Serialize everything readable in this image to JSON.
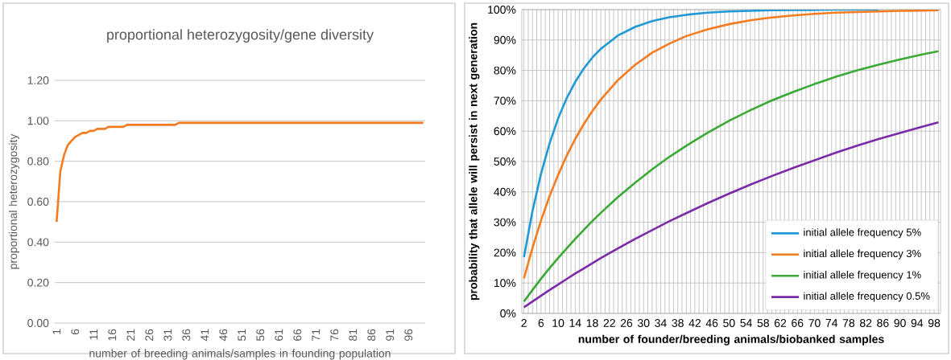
{
  "chart_data": [
    {
      "type": "line",
      "title": "proportional heterozygosity/gene diversity",
      "xlabel": "number of breeding animals/samples in founding population",
      "ylabel": "proportional heterozygosity",
      "categories": [
        "1",
        null,
        null,
        null,
        null,
        "6",
        null,
        null,
        null,
        null,
        "11",
        null,
        null,
        null,
        null,
        "16",
        null,
        null,
        null,
        null,
        "21",
        null,
        null,
        null,
        null,
        "26",
        null,
        null,
        null,
        null,
        "31",
        null,
        null,
        null,
        null,
        "36",
        null,
        null,
        null,
        null,
        "41",
        null,
        null,
        null,
        null,
        "46",
        null,
        null,
        null,
        null,
        "51",
        null,
        null,
        null,
        null,
        "56",
        null,
        null,
        null,
        null,
        "61",
        null,
        null,
        null,
        null,
        "66",
        null,
        null,
        null,
        null,
        "71",
        null,
        null,
        null,
        null,
        "76",
        null,
        null,
        null,
        null,
        "81",
        null,
        null,
        null,
        null,
        "86",
        null,
        null,
        null,
        null,
        "91",
        null,
        null,
        null,
        null,
        "96",
        null,
        null,
        null,
        null
      ],
      "values": [
        0.5,
        0.75,
        0.83,
        0.88,
        0.9,
        0.92,
        0.93,
        0.94,
        0.94,
        0.95,
        0.95,
        0.96,
        0.96,
        0.96,
        0.97,
        0.97,
        0.97,
        0.97,
        0.97,
        0.98,
        0.98,
        0.98,
        0.98,
        0.98,
        0.98,
        0.98,
        0.98,
        0.98,
        0.98,
        0.98,
        0.98,
        0.98,
        0.98,
        0.99,
        0.99,
        0.99,
        0.99,
        0.99,
        0.99,
        0.99,
        0.99,
        0.99,
        0.99,
        0.99,
        0.99,
        0.99,
        0.99,
        0.99,
        0.99,
        0.99,
        0.99,
        0.99,
        0.99,
        0.99,
        0.99,
        0.99,
        0.99,
        0.99,
        0.99,
        0.99,
        0.99,
        0.99,
        0.99,
        0.99,
        0.99,
        0.99,
        0.99,
        0.99,
        0.99,
        0.99,
        0.99,
        0.99,
        0.99,
        0.99,
        0.99,
        0.99,
        0.99,
        0.99,
        0.99,
        0.99,
        0.99,
        0.99,
        0.99,
        0.99,
        0.99,
        0.99,
        0.99,
        0.99,
        0.99,
        0.99,
        0.99,
        0.99,
        0.99,
        0.99,
        0.99,
        0.99,
        0.99,
        0.99,
        0.99,
        0.99
      ],
      "color": "#f47b20",
      "ylim": [
        0,
        1.2
      ],
      "yticks": [
        {
          "value": 0,
          "label": "0.00"
        },
        {
          "value": 0.2,
          "label": "0.20"
        },
        {
          "value": 0.4,
          "label": "0.40"
        },
        {
          "value": 0.6,
          "label": "0.60"
        },
        {
          "value": 0.8,
          "label": "0.80"
        },
        {
          "value": 1.0,
          "label": "1.00"
        },
        {
          "value": 1.2,
          "label": "1.20"
        }
      ],
      "grid": "y"
    },
    {
      "type": "line",
      "xlabel": "number of founder/breeding animals/biobanked samples",
      "ylabel": "probability that allele will persist in next generation",
      "x": [
        2,
        4,
        6,
        8,
        10,
        12,
        14,
        16,
        18,
        20,
        24,
        28,
        32,
        36,
        40,
        45,
        50,
        55,
        60,
        65,
        70,
        75,
        80,
        85,
        90,
        95,
        99
      ],
      "series": [
        {
          "name": "initial allele frequency 5%",
          "color": "#1f9ad6",
          "values": [
            18.5,
            33.7,
            46.0,
            56.0,
            64.2,
            70.8,
            76.2,
            80.6,
            84.2,
            87.1,
            91.5,
            94.3,
            96.2,
            97.5,
            98.3,
            99.0,
            99.4,
            99.6,
            99.8,
            99.9,
            99.9,
            100.0,
            100.0,
            100.0,
            null,
            null,
            null
          ]
        },
        {
          "name": "initial allele frequency 3%",
          "color": "#f47b20",
          "values": [
            11.5,
            21.6,
            30.6,
            38.6,
            45.6,
            51.9,
            57.4,
            62.3,
            66.6,
            70.4,
            76.8,
            81.8,
            85.8,
            88.8,
            91.3,
            93.5,
            95.2,
            96.5,
            97.4,
            98.1,
            98.6,
            99.0,
            99.2,
            99.4,
            99.6,
            99.7,
            99.8
          ]
        },
        {
          "name": "initial allele frequency 1%",
          "color": "#3aa935",
          "values": [
            3.9,
            7.7,
            11.4,
            14.9,
            18.2,
            21.4,
            24.5,
            27.5,
            30.4,
            33.1,
            38.3,
            43.0,
            47.4,
            51.5,
            55.2,
            59.5,
            63.4,
            66.9,
            70.1,
            72.9,
            75.5,
            77.9,
            80.0,
            81.9,
            83.6,
            85.2,
            86.3
          ]
        },
        {
          "name": "initial allele frequency 0.5%",
          "color": "#7b2aa8",
          "values": [
            2.0,
            3.9,
            5.8,
            7.7,
            9.5,
            11.3,
            13.1,
            14.8,
            16.5,
            18.2,
            21.4,
            24.5,
            27.4,
            30.3,
            33.0,
            36.3,
            39.4,
            42.4,
            45.2,
            47.9,
            50.4,
            52.9,
            55.2,
            57.4,
            59.4,
            61.4,
            62.9
          ]
        }
      ],
      "xlim": [
        1.5,
        99.5
      ],
      "ylim": [
        0,
        100
      ],
      "xticks": [
        2,
        {
          "value": 3,
          "label": null
        },
        {
          "value": 4,
          "label": null
        },
        {
          "value": 5,
          "label": null
        },
        6,
        {
          "value": 7,
          "label": null
        },
        {
          "value": 8,
          "label": null
        },
        {
          "value": 9,
          "label": null
        },
        10,
        {
          "value": 11,
          "label": null
        },
        {
          "value": 12,
          "label": null
        },
        {
          "value": 13,
          "label": null
        },
        14,
        {
          "value": 15,
          "label": null
        },
        {
          "value": 16,
          "label": null
        },
        {
          "value": 17,
          "label": null
        },
        18,
        {
          "value": 19,
          "label": null
        },
        {
          "value": 20,
          "label": null
        },
        {
          "value": 21,
          "label": null
        },
        22,
        {
          "value": 23,
          "label": null
        },
        {
          "value": 24,
          "label": null
        },
        {
          "value": 25,
          "label": null
        },
        26,
        {
          "value": 27,
          "label": null
        },
        {
          "value": 28,
          "label": null
        },
        {
          "value": 29,
          "label": null
        },
        30,
        {
          "value": 31,
          "label": null
        },
        {
          "value": 32,
          "label": null
        },
        {
          "value": 33,
          "label": null
        },
        34,
        {
          "value": 35,
          "label": null
        },
        {
          "value": 36,
          "label": null
        },
        {
          "value": 37,
          "label": null
        },
        38,
        {
          "value": 39,
          "label": null
        },
        {
          "value": 40,
          "label": null
        },
        {
          "value": 41,
          "label": null
        },
        42,
        {
          "value": 43,
          "label": null
        },
        {
          "value": 44,
          "label": null
        },
        {
          "value": 45,
          "label": null
        },
        46,
        {
          "value": 47,
          "label": null
        },
        {
          "value": 48,
          "label": null
        },
        {
          "value": 49,
          "label": null
        },
        50,
        {
          "value": 51,
          "label": null
        },
        {
          "value": 52,
          "label": null
        },
        {
          "value": 53,
          "label": null
        },
        54,
        {
          "value": 55,
          "label": null
        },
        {
          "value": 56,
          "label": null
        },
        {
          "value": 57,
          "label": null
        },
        58,
        {
          "value": 59,
          "label": null
        },
        {
          "value": 60,
          "label": null
        },
        {
          "value": 61,
          "label": null
        },
        62,
        {
          "value": 63,
          "label": null
        },
        {
          "value": 64,
          "label": null
        },
        {
          "value": 65,
          "label": null
        },
        66,
        {
          "value": 67,
          "label": null
        },
        {
          "value": 68,
          "label": null
        },
        {
          "value": 69,
          "label": null
        },
        70,
        {
          "value": 71,
          "label": null
        },
        {
          "value": 72,
          "label": null
        },
        {
          "value": 73,
          "label": null
        },
        74,
        {
          "value": 75,
          "label": null
        },
        {
          "value": 76,
          "label": null
        },
        {
          "value": 77,
          "label": null
        },
        78,
        {
          "value": 79,
          "label": null
        },
        {
          "value": 80,
          "label": null
        },
        {
          "value": 81,
          "label": null
        },
        82,
        {
          "value": 83,
          "label": null
        },
        {
          "value": 84,
          "label": null
        },
        {
          "value": 85,
          "label": null
        },
        86,
        {
          "value": 87,
          "label": null
        },
        {
          "value": 88,
          "label": null
        },
        {
          "value": 89,
          "label": null
        },
        90,
        {
          "value": 91,
          "label": null
        },
        {
          "value": 92,
          "label": null
        },
        {
          "value": 93,
          "label": null
        },
        94,
        {
          "value": 95,
          "label": null
        },
        {
          "value": 96,
          "label": null
        },
        {
          "value": 97,
          "label": null
        },
        98,
        {
          "value": 99,
          "label": null
        }
      ],
      "yticks": [
        {
          "value": 0,
          "label": "0%"
        },
        {
          "value": 10,
          "label": "10%"
        },
        {
          "value": 20,
          "label": "20%"
        },
        {
          "value": 30,
          "label": "30%"
        },
        {
          "value": 40,
          "label": "40%"
        },
        {
          "value": 50,
          "label": "50%"
        },
        {
          "value": 60,
          "label": "60%"
        },
        {
          "value": 70,
          "label": "70%"
        },
        {
          "value": 80,
          "label": "80%"
        },
        {
          "value": 90,
          "label": "90%"
        },
        {
          "value": 100,
          "label": "100%"
        }
      ],
      "grid": true,
      "legend": "bottom right"
    }
  ]
}
